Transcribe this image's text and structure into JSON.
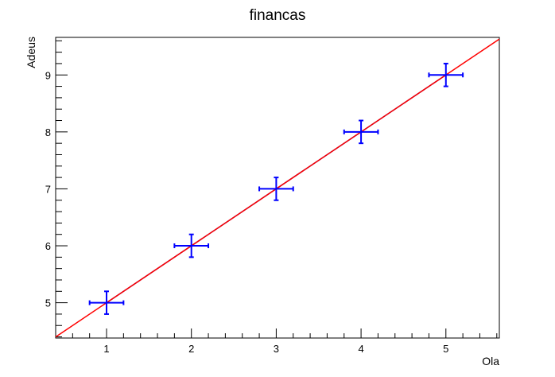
{
  "chart_data": {
    "type": "scatter",
    "title": "financas",
    "xlabel": "Ola",
    "ylabel": "Adeus",
    "xlim": [
      0.4,
      5.63
    ],
    "ylim": [
      4.38,
      9.66
    ],
    "xticks": [
      1,
      2,
      3,
      4,
      5
    ],
    "yticks": [
      5,
      6,
      7,
      8,
      9
    ],
    "grid": false,
    "series": [
      {
        "x": [
          1,
          2,
          3,
          4,
          5
        ],
        "y": [
          5,
          6,
          7,
          8,
          9
        ],
        "x_err": [
          0.2,
          0.2,
          0.2,
          0.2,
          0.2
        ],
        "y_err": [
          0.2,
          0.2,
          0.2,
          0.2,
          0.2
        ],
        "color": "#0000ff"
      }
    ],
    "fit_line": {
      "slope": 1.0,
      "intercept": 4.0,
      "color": "#ff0000"
    },
    "connect_line_color": "#00008b"
  }
}
